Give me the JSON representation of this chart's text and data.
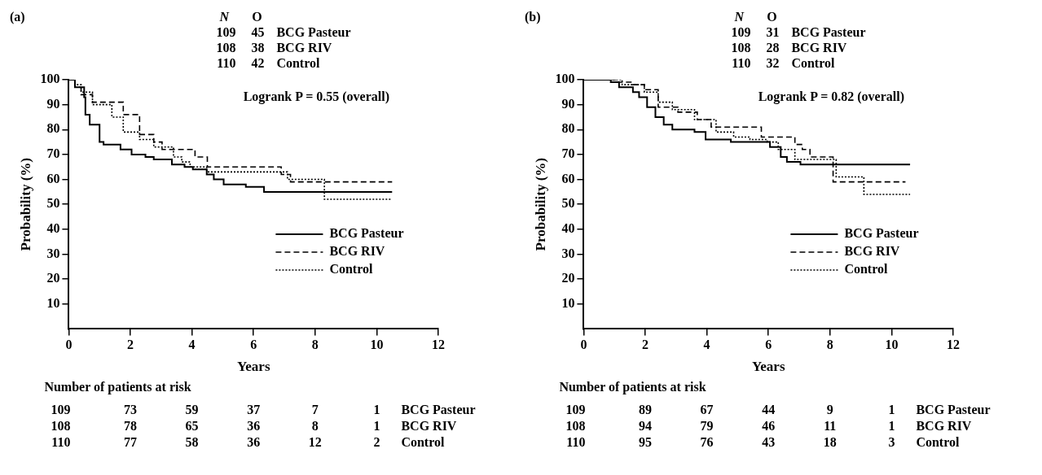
{
  "chart_data": [
    {
      "type": "step",
      "xlabel": "Years",
      "ylabel": "Probability (%)",
      "xlim": [
        0,
        12
      ],
      "xticks": [
        0,
        2,
        4,
        6,
        8,
        10,
        12
      ],
      "ylim": [
        0,
        100
      ],
      "yticks": [
        10,
        20,
        30,
        40,
        50,
        60,
        70,
        80,
        90,
        100
      ],
      "grid": false,
      "legend": "right",
      "marker": "none",
      "annotations": [
        "(a)",
        "N  O",
        "109  45  BCG Pasteur",
        "108  38  BCG RIV",
        "110  42  Control",
        "Logrank P = 0.55 (overall)",
        "Number of patients at risk",
        "109  73  59  37  7  1  BCG Pasteur",
        "108  78  65  36  8  1  BCG RIV",
        "110  77  58  36  12  2  Control"
      ],
      "series": [
        {
          "name": "BCG Pasteur",
          "color": "#000000",
          "line_style": "solid",
          "x": [
            0,
            0.2,
            0.5,
            0.54,
            0.68,
            1.0,
            1.13,
            1.68,
            2.04,
            2.49,
            2.76,
            3.35,
            3.76,
            4.03,
            4.48,
            4.71,
            5.03,
            5.75,
            6.34,
            10.5
          ],
          "values": [
            100,
            97,
            93,
            86,
            82,
            75,
            74,
            72,
            70,
            69,
            68,
            66,
            65,
            64,
            62,
            60,
            58,
            57,
            55,
            55
          ]
        },
        {
          "name": "BCG RIV",
          "color": "#000000",
          "line_style": "dashed",
          "x": [
            0,
            0.2,
            0.4,
            0.77,
            1.77,
            2.3,
            2.76,
            3.03,
            4.1,
            4.5,
            6.9,
            7.2,
            10.5
          ],
          "values": [
            100,
            97,
            94,
            91,
            86,
            78,
            75,
            72,
            69,
            65,
            62,
            59,
            59
          ]
        },
        {
          "name": "Control",
          "color": "#000000",
          "line_style": "dotted",
          "x": [
            0,
            0.2,
            0.4,
            0.77,
            1.4,
            1.77,
            2.3,
            2.76,
            3.4,
            3.67,
            3.94,
            4.48,
            7.1,
            8.3,
            10.5
          ],
          "values": [
            100,
            98,
            95,
            90,
            85,
            79,
            76,
            73,
            69,
            67,
            65,
            63,
            60,
            52,
            52
          ]
        }
      ]
    },
    {
      "type": "step",
      "xlabel": "Years",
      "ylabel": "Probability (%)",
      "xlim": [
        0,
        12
      ],
      "xticks": [
        0,
        2,
        4,
        6,
        8,
        10,
        12
      ],
      "ylim": [
        0,
        100
      ],
      "yticks": [
        10,
        20,
        30,
        40,
        50,
        60,
        70,
        80,
        90,
        100
      ],
      "grid": false,
      "legend": "right",
      "marker": "none",
      "annotations": [
        "(b)",
        "N  O",
        "109  31  BCG Pasteur",
        "108  28  BCG RIV",
        "110  32  Control",
        "Logrank P = 0.82 (overall)",
        "Number of patients at risk",
        "109  89  67  44  9  1  BCG Pasteur",
        "108  94  79  46  11  1  BCG RIV",
        "110  95  76  43  18  3  Control"
      ],
      "series": [
        {
          "name": "BCG Pasteur",
          "color": "#000000",
          "line_style": "solid",
          "x": [
            0,
            0.88,
            1.15,
            1.6,
            1.8,
            2.06,
            2.33,
            2.6,
            2.88,
            3.6,
            3.96,
            4.78,
            6.05,
            6.4,
            6.6,
            7.04,
            10.6
          ],
          "values": [
            100,
            99,
            97,
            95,
            93,
            89,
            85,
            82,
            80,
            79,
            76,
            75,
            73,
            69,
            67,
            66,
            66
          ]
        },
        {
          "name": "BCG RIV",
          "color": "#000000",
          "line_style": "dashed",
          "x": [
            0,
            0.8,
            1.06,
            1.6,
            1.97,
            2.42,
            3.06,
            3.69,
            4.14,
            5.77,
            6.86,
            7.1,
            7.35,
            8.1,
            10.45
          ],
          "values": [
            100,
            100,
            99,
            98,
            96,
            89,
            87,
            84,
            81,
            77,
            74,
            72,
            69,
            59,
            59
          ]
        },
        {
          "name": "Control",
          "color": "#000000",
          "line_style": "dotted",
          "x": [
            0,
            0.8,
            1.25,
            1.97,
            2.42,
            2.88,
            3.6,
            4.3,
            4.87,
            5.4,
            5.96,
            6.32,
            6.86,
            8.2,
            9.1,
            10.6
          ],
          "values": [
            100,
            100,
            98,
            95,
            91,
            88,
            84,
            79,
            77,
            76,
            75,
            72,
            68,
            61,
            54,
            54
          ]
        }
      ]
    }
  ]
}
